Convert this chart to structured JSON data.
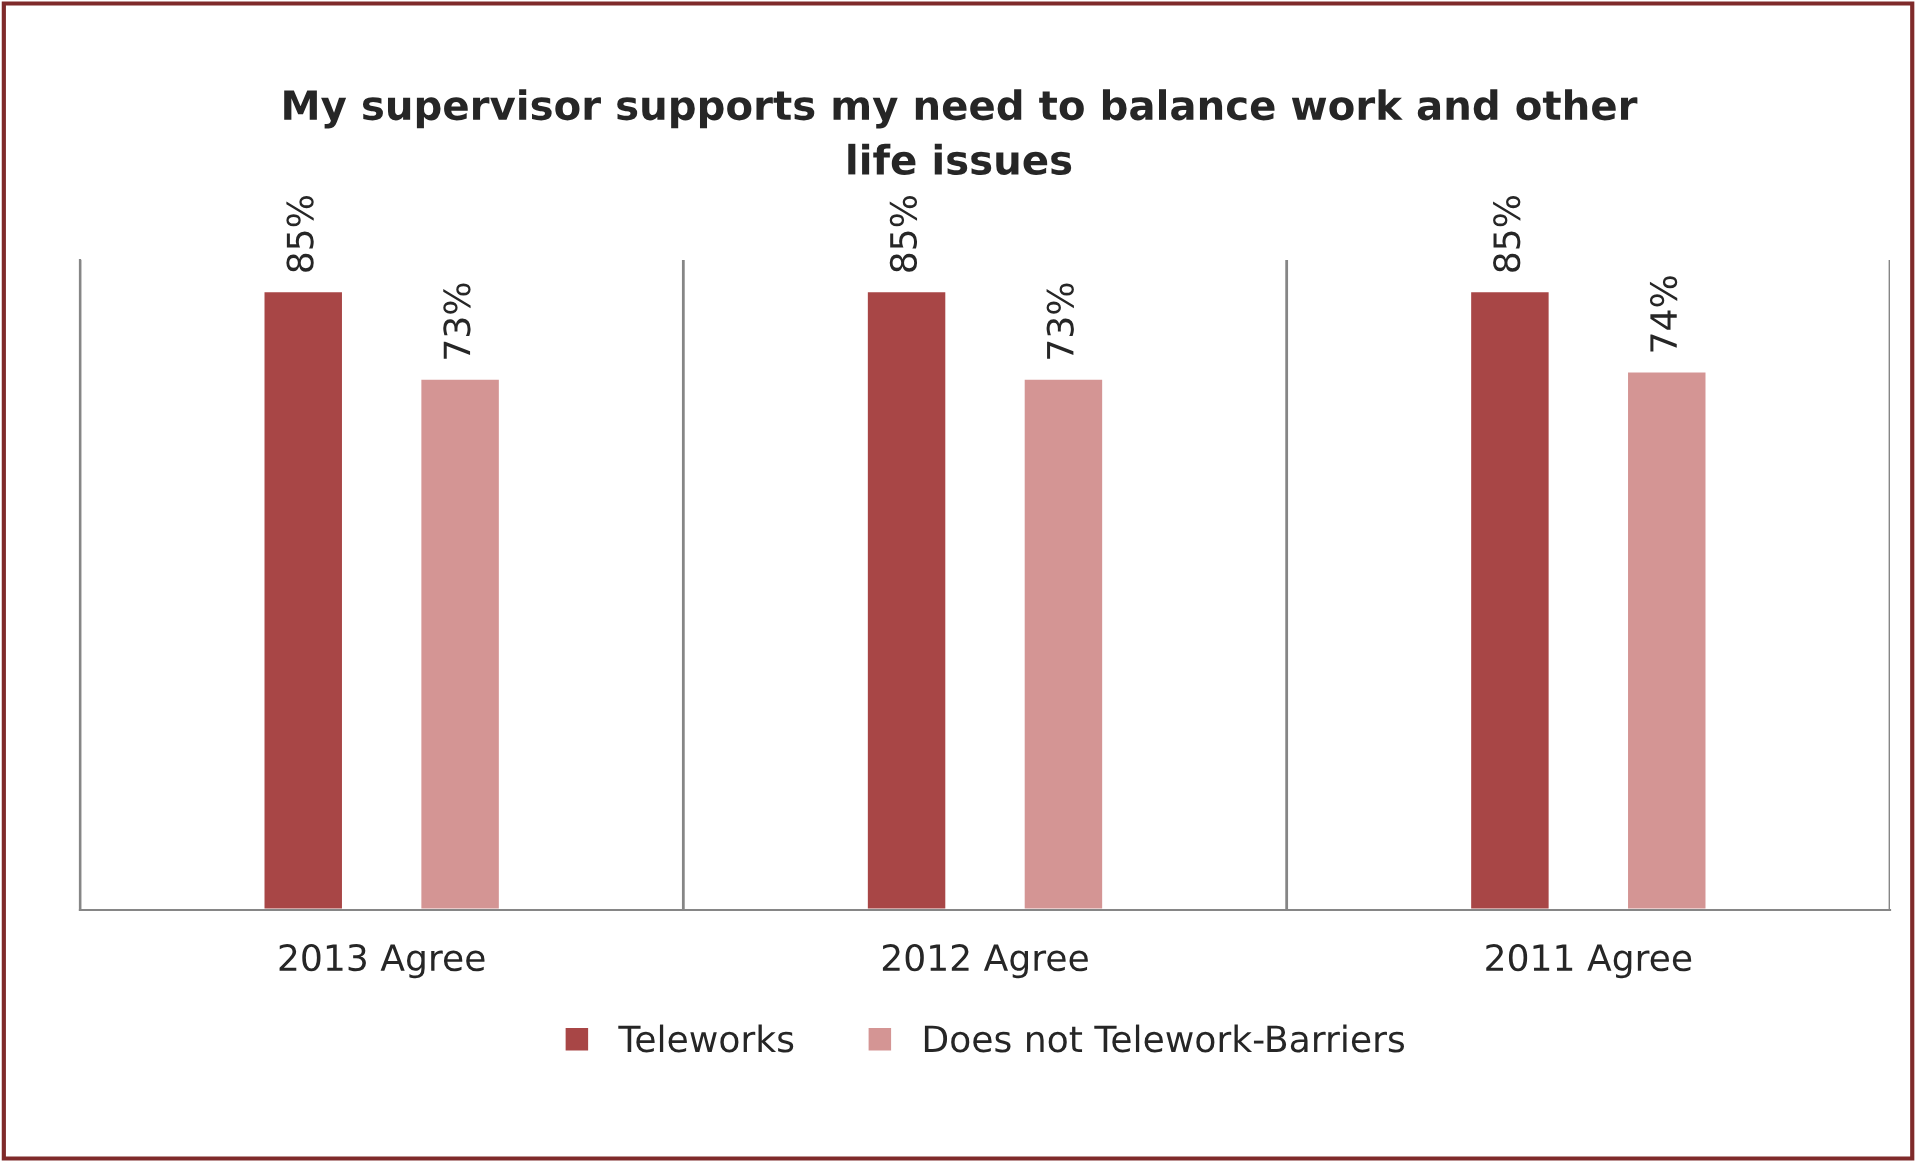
{
  "chart_data": {
    "type": "bar",
    "title": "My supervisor supports my need to balance work and other\nlife issues",
    "categories": [
      "2013 Agree",
      "2012 Agree",
      "2011 Agree"
    ],
    "series": [
      {
        "name": "Teleworks",
        "color": "#a84646",
        "values": [
          85,
          85,
          85
        ],
        "value_labels": [
          "85%",
          "85%",
          "85%"
        ]
      },
      {
        "name": "Does not Telework-Barriers",
        "color": "#d49594",
        "values": [
          73,
          73,
          74
        ],
        "value_labels": [
          "73%",
          "73%",
          "74%"
        ]
      }
    ],
    "grid": "x",
    "legend": "bottom",
    "tick_labels": "x"
  }
}
